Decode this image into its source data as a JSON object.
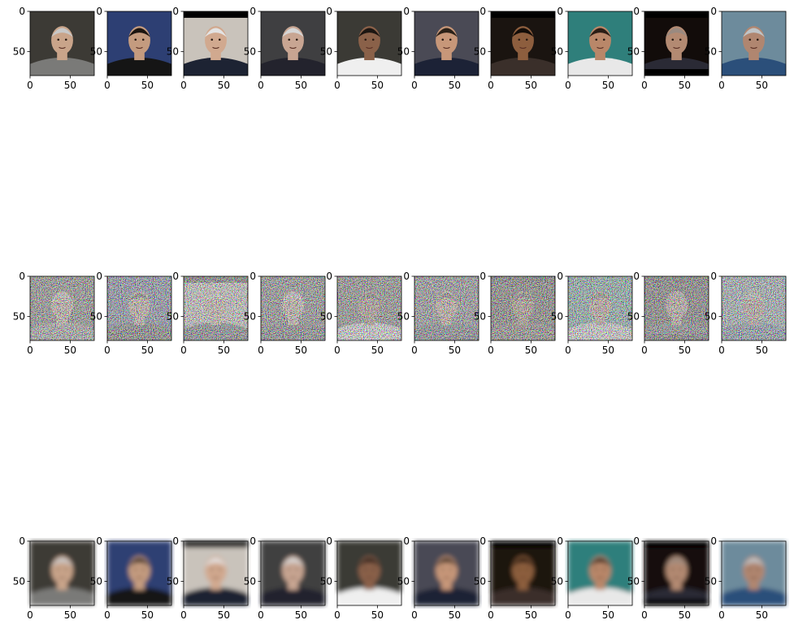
{
  "chart_data": {
    "type": "image-grid",
    "rows": [
      {
        "name": "",
        "style": "photo"
      },
      {
        "name": "",
        "style": "noise"
      },
      {
        "name": "",
        "style": "blur"
      }
    ],
    "cols": 10,
    "image_size": [
      80,
      80
    ],
    "xticks": [
      "0",
      "50"
    ],
    "yticks": [
      "0",
      "50"
    ],
    "xlim": [
      0,
      80
    ],
    "ylim": [
      80,
      0
    ],
    "grid": false,
    "legend": "none"
  },
  "faces": [
    {
      "bg": "#3c3a35",
      "skin": "#c9a48a",
      "suit": "#7a7a78",
      "hair": "#c8c8c8",
      "top_bar": false,
      "bottom_bar": false
    },
    {
      "bg": "#2d3f73",
      "skin": "#c49b7f",
      "suit": "#151515",
      "hair": "#1b1410",
      "top_bar": false,
      "bottom_bar": false
    },
    {
      "bg": "#c9c3bb",
      "skin": "#d1a98f",
      "suit": "#1d2333",
      "hair": "#e3e3e3",
      "top_bar": true,
      "bottom_bar": false
    },
    {
      "bg": "#3f3f41",
      "skin": "#c8a592",
      "suit": "#23232d",
      "hair": "#d6d6d6",
      "top_bar": false,
      "bottom_bar": false
    },
    {
      "bg": "#3b3a35",
      "skin": "#8a6149",
      "suit": "#efefef",
      "hair": "#1c1612",
      "top_bar": false,
      "bottom_bar": false
    },
    {
      "bg": "#4a4a55",
      "skin": "#c79779",
      "suit": "#1c2236",
      "hair": "#2a2118",
      "top_bar": false,
      "bottom_bar": false
    },
    {
      "bg": "#1a1410",
      "skin": "#8d5e3e",
      "suit": "#3a2f2a",
      "hair": "#120c08",
      "top_bar": true,
      "bottom_bar": false
    },
    {
      "bg": "#2f7f7b",
      "skin": "#b98769",
      "suit": "#e8e8e8",
      "hair": "#2a1d15",
      "top_bar": false,
      "bottom_bar": false
    },
    {
      "bg": "#120c0a",
      "skin": "#b38a72",
      "suit": "#2a2a35",
      "hair": "#9a8a80",
      "top_bar": true,
      "bottom_bar": true
    },
    {
      "bg": "#6d8b9c",
      "skin": "#b08670",
      "suit": "#2b4f7a",
      "hair": "#bfc4c7",
      "top_bar": false,
      "bottom_bar": false
    }
  ]
}
